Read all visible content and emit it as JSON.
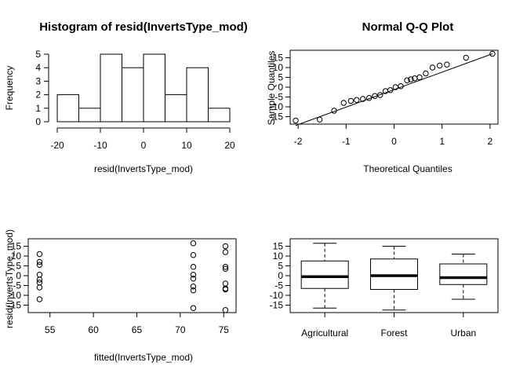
{
  "chart_data": [
    {
      "id": "histogram",
      "type": "bar",
      "title": "Histogram of resid(InvertsType_mod)",
      "xlabel": "resid(InvertsType_mod)",
      "ylabel": "Frequency",
      "bin_edges": [
        -20,
        -15,
        -10,
        -5,
        0,
        5,
        10,
        15,
        20
      ],
      "values": [
        2,
        1,
        5,
        4,
        5,
        2,
        4,
        1
      ],
      "xlim": [
        -20,
        20
      ],
      "ylim": [
        0,
        5
      ],
      "x_ticks": [
        -20,
        -10,
        0,
        10,
        20
      ],
      "y_ticks": [
        0,
        1,
        2,
        3,
        4,
        5
      ]
    },
    {
      "id": "qqplot",
      "type": "scatter",
      "title": "Normal Q-Q Plot",
      "xlabel": "Theoretical Quantiles",
      "ylabel": "Sample Quantiles",
      "x": [
        -2.05,
        -1.55,
        -1.25,
        -1.05,
        -0.9,
        -0.78,
        -0.65,
        -0.52,
        -0.4,
        -0.29,
        -0.18,
        -0.08,
        0.03,
        0.14,
        0.27,
        0.35,
        0.43,
        0.53,
        0.66,
        0.8,
        0.95,
        1.1,
        1.5,
        2.05
      ],
      "y": [
        -17,
        -16.5,
        -12,
        -8,
        -7,
        -6.5,
        -6,
        -5.5,
        -4.5,
        -4,
        -2,
        -1.5,
        0,
        0.5,
        3.5,
        4,
        4.5,
        5,
        7,
        10,
        11,
        11.5,
        15,
        17
      ],
      "line": {
        "x": [
          -2.05,
          2.05
        ],
        "y": [
          -19.5,
          17
        ]
      },
      "xlim": [
        -2.1,
        2.1
      ],
      "ylim": [
        -18,
        18
      ],
      "x_ticks": [
        -2,
        -1,
        0,
        1,
        2
      ],
      "y_ticks": [
        15,
        10,
        5,
        0,
        -5,
        -10,
        -15
      ]
    },
    {
      "id": "resid-vs-fitted",
      "type": "scatter",
      "title": "",
      "xlabel": "fitted(InvertsType_mod)",
      "ylabel": "resid(InvertsType_mod)",
      "x": [
        53.8,
        53.8,
        53.8,
        53.8,
        53.8,
        53.8,
        53.8,
        53.8,
        71.5,
        71.5,
        71.5,
        71.5,
        71.5,
        71.5,
        71.5,
        71.5,
        75.2,
        75.2,
        75.2,
        75.2,
        75.2,
        75.2,
        75.2,
        75.2
      ],
      "y": [
        11,
        7,
        5.5,
        0.5,
        -2,
        -3.5,
        -6,
        -12,
        16.5,
        10.5,
        4.5,
        0.5,
        -1.5,
        -5.5,
        -7.5,
        -16.5,
        15,
        12,
        4.5,
        3.5,
        -4,
        -6.5,
        -7,
        -17.5
      ],
      "xlim": [
        53.4,
        75.7
      ],
      "ylim": [
        -18,
        18
      ],
      "x_ticks": [
        55,
        60,
        65,
        70,
        75
      ],
      "y_ticks": [
        15,
        10,
        5,
        0,
        -5,
        -10,
        -15
      ]
    },
    {
      "id": "boxplot",
      "type": "box",
      "title": "",
      "xlabel": "",
      "ylabel": "",
      "categories": [
        "Agricultural",
        "Forest",
        "Urban"
      ],
      "boxes": [
        {
          "min": -16.5,
          "q1": -6.5,
          "median": -0.5,
          "q3": 7.5,
          "max": 16.5
        },
        {
          "min": -17.5,
          "q1": -7,
          "median": 0,
          "q3": 8.5,
          "max": 15
        },
        {
          "min": -12,
          "q1": -4.5,
          "median": -1,
          "q3": 6,
          "max": 11
        }
      ],
      "ylim": [
        -18,
        18
      ],
      "y_ticks": [
        15,
        10,
        5,
        0,
        -5,
        -10,
        -15
      ]
    }
  ]
}
